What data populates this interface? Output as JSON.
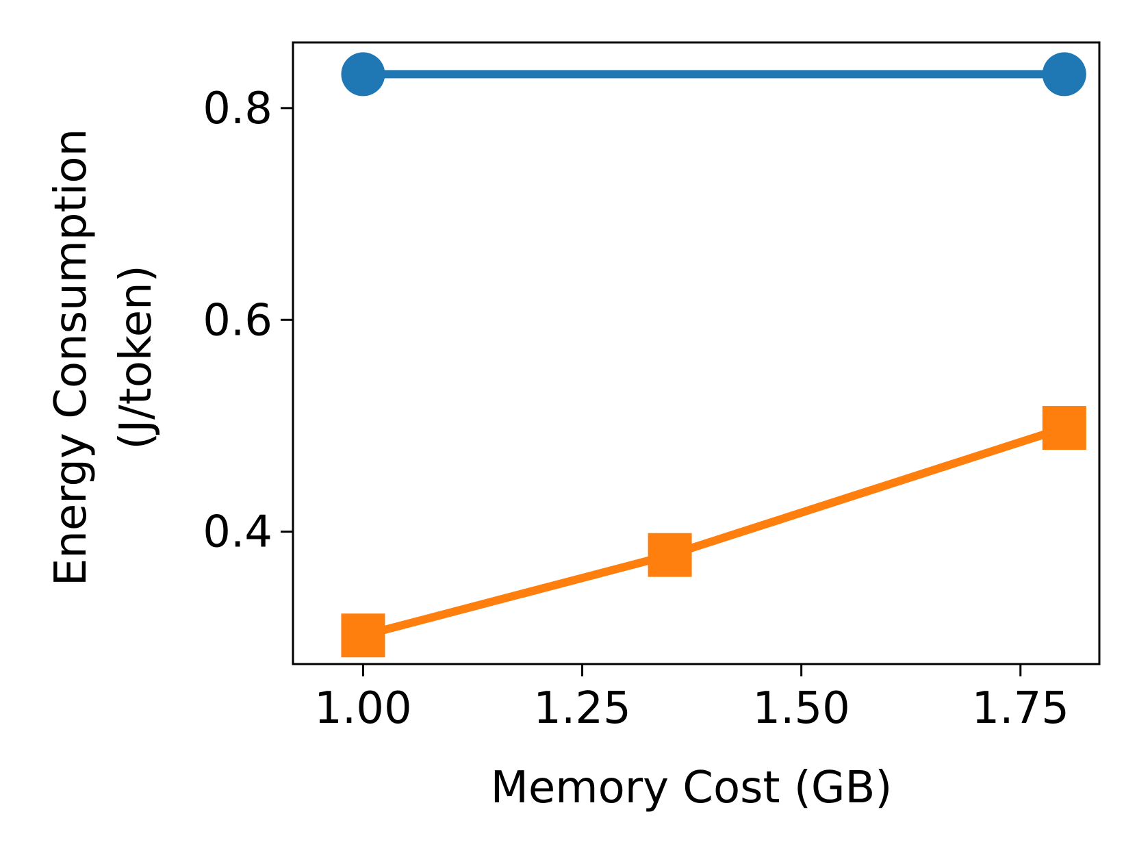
{
  "chart_data": {
    "type": "line",
    "title": "",
    "xlabel": "Memory Cost (GB)",
    "ylabel_line1": "Energy Consumption",
    "ylabel_line2": "(J/token)",
    "xlim": [
      0.92,
      1.84
    ],
    "ylim": [
      0.275,
      0.862
    ],
    "x_ticks": [
      1.0,
      1.25,
      1.5,
      1.75
    ],
    "x_tick_labels": [
      "1.00",
      "1.25",
      "1.50",
      "1.75"
    ],
    "y_ticks": [
      0.4,
      0.6,
      0.8
    ],
    "y_tick_labels": [
      "0.4",
      "0.6",
      "0.8"
    ],
    "grid": false,
    "series": [
      {
        "color": "#1f77b4",
        "marker": "circle",
        "x": [
          1.0,
          1.8
        ],
        "y": [
          0.832,
          0.832
        ]
      },
      {
        "color": "#ff7f0e",
        "marker": "square",
        "x": [
          1.0,
          1.35,
          1.8
        ],
        "y": [
          0.302,
          0.378,
          0.498
        ]
      }
    ]
  }
}
